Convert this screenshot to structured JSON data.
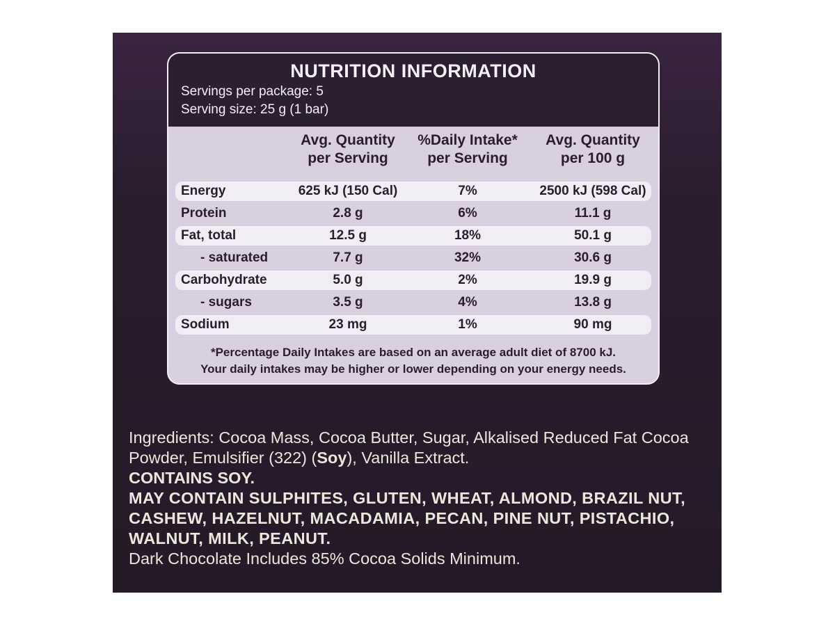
{
  "header": {
    "title": "NUTRITION INFORMATION",
    "servings": "Servings per package: 5",
    "serving_size": "Serving size: 25 g (1 bar)"
  },
  "table": {
    "columns": [
      [
        "Avg. Quantity",
        "per Serving"
      ],
      [
        "%Daily Intake*",
        "per Serving"
      ],
      [
        "Avg. Quantity",
        "per 100 g"
      ]
    ],
    "rows": [
      [
        "Energy",
        "625 kJ (150 Cal)",
        "7%",
        "2500 kJ (598 Cal)"
      ],
      [
        "Protein",
        "2.8 g",
        "6%",
        "11.1 g"
      ],
      [
        "Fat, total",
        "12.5 g",
        "18%",
        "50.1 g"
      ],
      [
        "- saturated",
        "7.7 g",
        "32%",
        "30.6 g"
      ],
      [
        "Carbohydrate",
        "5.0 g",
        "2%",
        "19.9 g"
      ],
      [
        "- sugars",
        "3.5 g",
        "4%",
        "13.8 g"
      ],
      [
        "Sodium",
        "23 mg",
        "1%",
        "90 mg"
      ]
    ],
    "footnote": [
      "*Percentage Daily Intakes are based on an average adult diet of 8700 kJ.",
      "Your daily intakes may be higher or lower depending on your energy needs."
    ]
  },
  "ingredients": {
    "text_before": "Ingredients: Cocoa Mass, Cocoa Butter, Sugar, Alkalised Reduced Fat Cocoa Powder, Emulsifier (322) (",
    "allergen": "Soy",
    "text_after": "), Vanilla Extract.",
    "contains": "CONTAINS SOY.",
    "may_contain": "MAY CONTAIN SULPHITES, GLUTEN, WHEAT, ALMOND, BRAZIL NUT, CASHEW, HAZELNUT, MACADAMIA, PECAN, PINE NUT, PISTACHIO, WALNUT, MILK, PEANUT.",
    "cocoa_note": "Dark Chocolate Includes 85% Cocoa Solids Minimum."
  }
}
